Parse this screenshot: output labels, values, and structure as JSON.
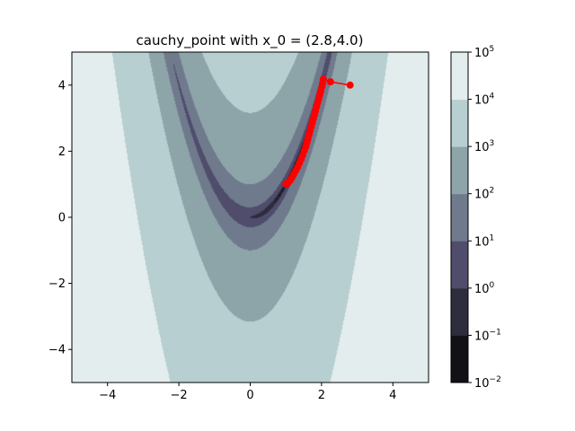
{
  "chart_data": {
    "type": "contour",
    "title": "cauchy_point with x_0 = (2.8,4.0)",
    "xlabel": "",
    "ylabel": "",
    "xlim": [
      -5,
      5
    ],
    "ylim": [
      -5,
      5
    ],
    "x_ticks": [
      {
        "value": -4,
        "label": "−4"
      },
      {
        "value": -2,
        "label": "−2"
      },
      {
        "value": 0,
        "label": "0"
      },
      {
        "value": 2,
        "label": "2"
      },
      {
        "value": 4,
        "label": "4"
      }
    ],
    "y_ticks": [
      {
        "value": -4,
        "label": "−4"
      },
      {
        "value": -2,
        "label": "−2"
      },
      {
        "value": 0,
        "label": "0"
      },
      {
        "value": 2,
        "label": "2"
      },
      {
        "value": 4,
        "label": "4"
      }
    ],
    "function": "rosenbrock",
    "levels": [
      0.01,
      0.1,
      1,
      10,
      100,
      1000,
      10000,
      100000
    ],
    "level_colors": [
      "#111116",
      "#2e2d3d",
      "#4f4c6c",
      "#6f7a8c",
      "#8da4a9",
      "#b7cfd0",
      "#e3eded"
    ],
    "colorbar": {
      "scale": "log",
      "ticks": [
        {
          "exp": "−2",
          "value": 0.01
        },
        {
          "exp": "−1",
          "value": 0.1
        },
        {
          "exp": "0",
          "value": 1
        },
        {
          "exp": "1",
          "value": 10
        },
        {
          "exp": "2",
          "value": 100
        },
        {
          "exp": "3",
          "value": 1000
        },
        {
          "exp": "4",
          "value": 10000
        },
        {
          "exp": "5",
          "value": 100000
        }
      ],
      "base": "10"
    },
    "path": {
      "color": "#ff0000",
      "marker": "circle",
      "points": [
        [
          2.8,
          4.0
        ],
        [
          2.25,
          4.1
        ],
        [
          2.05,
          4.18
        ],
        [
          2.03,
          4.05
        ],
        [
          2.01,
          3.95
        ],
        [
          1.98,
          3.82
        ],
        [
          1.95,
          3.7
        ],
        [
          1.92,
          3.58
        ],
        [
          1.89,
          3.46
        ],
        [
          1.86,
          3.34
        ],
        [
          1.83,
          3.22
        ],
        [
          1.8,
          3.1
        ],
        [
          1.77,
          2.98
        ],
        [
          1.74,
          2.86
        ],
        [
          1.71,
          2.74
        ],
        [
          1.68,
          2.62
        ],
        [
          1.65,
          2.5
        ],
        [
          1.62,
          2.38
        ],
        [
          1.59,
          2.26
        ],
        [
          1.56,
          2.14
        ],
        [
          1.52,
          2.02
        ],
        [
          1.47,
          1.88
        ],
        [
          1.43,
          1.76
        ],
        [
          1.38,
          1.64
        ],
        [
          1.33,
          1.52
        ],
        [
          1.28,
          1.42
        ],
        [
          1.22,
          1.3
        ],
        [
          1.17,
          1.2
        ],
        [
          1.12,
          1.12
        ],
        [
          1.07,
          1.06
        ],
        [
          1.03,
          1.02
        ],
        [
          1.0,
          1.0
        ]
      ]
    }
  }
}
